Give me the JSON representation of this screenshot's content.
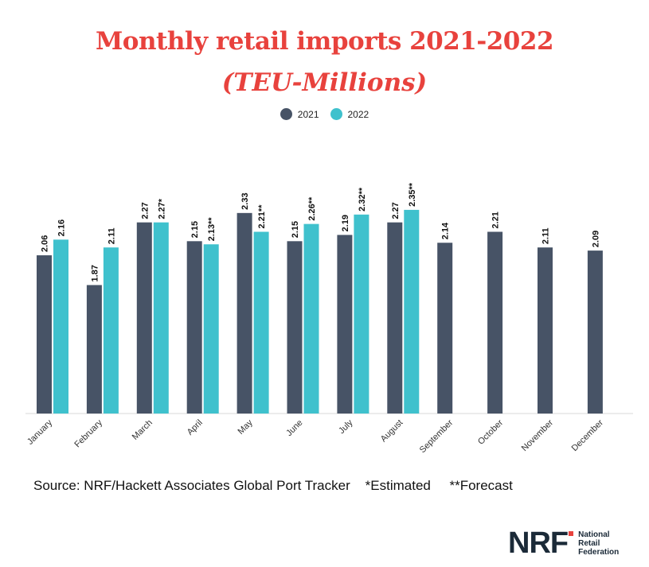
{
  "title": "Monthly retail imports 2021-2022",
  "subtitle": "(TEU-Millions)",
  "source_text": "Source: NRF/Hackett Associates Global Port Tracker    *Estimated     **Forecast",
  "logo": {
    "mark": "NRF",
    "line1": "National",
    "line2": "Retail",
    "line3": "Federation"
  },
  "colors": {
    "series_2021": "#475366",
    "series_2022": "#3fc1cd",
    "title": "#e8423d"
  },
  "chart_data": {
    "type": "bar",
    "title": "Monthly retail imports 2021-2022",
    "subtitle": "(TEU-Millions)",
    "legend_position": "top",
    "grid": false,
    "ylim": [
      0,
      2.4
    ],
    "categories": [
      "January",
      "February",
      "March",
      "April",
      "May",
      "June",
      "July",
      "August",
      "September",
      "October",
      "November",
      "December"
    ],
    "series": [
      {
        "name": "2021",
        "values": [
          2.06,
          1.87,
          2.27,
          2.15,
          2.33,
          2.15,
          2.19,
          2.27,
          2.14,
          2.21,
          2.11,
          2.09
        ],
        "labels": [
          "2.06",
          "1.87",
          "2.27",
          "2.15",
          "2.33",
          "2.15",
          "2.19",
          "2.27",
          "2.14",
          "2.21",
          "2.11",
          "2.09"
        ]
      },
      {
        "name": "2022",
        "values": [
          2.16,
          2.11,
          2.27,
          2.13,
          2.21,
          2.26,
          2.32,
          2.35,
          null,
          null,
          null,
          null
        ],
        "labels": [
          "2.16",
          "2.11",
          "2.27*",
          "2.13**",
          "2.21**",
          "2.26**",
          "2.32**",
          "2.35**",
          null,
          null,
          null,
          null
        ]
      }
    ]
  }
}
